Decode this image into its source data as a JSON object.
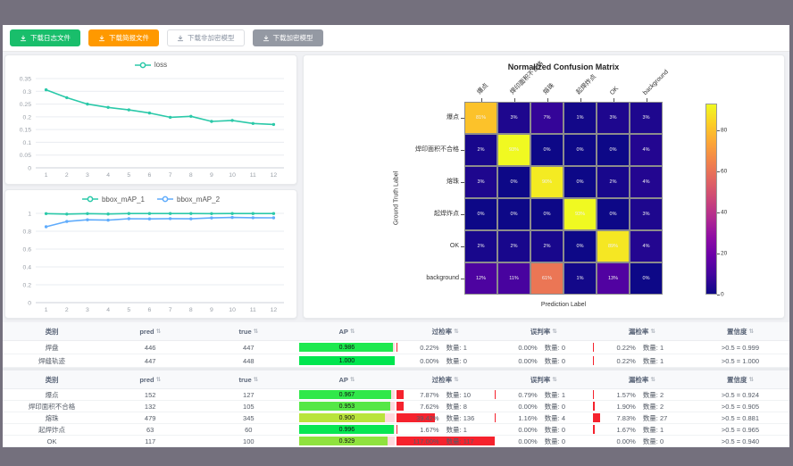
{
  "toolbar": {
    "buttons": [
      {
        "name": "download-log-button",
        "label": "下载日志文件",
        "bg": "#19be6b",
        "fg": "#ffffff",
        "border": "#19be6b"
      },
      {
        "name": "download-report-button",
        "label": "下载简报文件",
        "bg": "#ff9900",
        "fg": "#ffffff",
        "border": "#ff9900"
      },
      {
        "name": "download-unencrypted-model-button",
        "label": "下载非加密模型",
        "bg": "#ffffff",
        "fg": "#8a93a2",
        "border": "#dcdee2"
      },
      {
        "name": "download-encrypted-model-button",
        "label": "下载加密模型",
        "bg": "#9499a3",
        "fg": "#ffffff",
        "border": "#9499a3"
      }
    ]
  },
  "chart_data": [
    {
      "type": "line",
      "title": "",
      "x": [
        1,
        2,
        3,
        4,
        5,
        6,
        7,
        8,
        9,
        10,
        11,
        12
      ],
      "series": [
        {
          "name": "loss",
          "color": "#2bc9a9",
          "values": [
            0.306,
            0.275,
            0.25,
            0.237,
            0.227,
            0.215,
            0.198,
            0.202,
            0.182,
            0.186,
            0.174,
            0.17
          ]
        }
      ],
      "ylim": [
        0,
        0.35
      ],
      "yticks": [
        0,
        0.05,
        0.1,
        0.15,
        0.2,
        0.25,
        0.3,
        0.35
      ],
      "grid": true,
      "legend_position": "top"
    },
    {
      "type": "line",
      "title": "",
      "x": [
        1,
        2,
        3,
        4,
        5,
        6,
        7,
        8,
        9,
        10,
        11,
        12
      ],
      "series": [
        {
          "name": "bbox_mAP_1",
          "color": "#2bc9a9",
          "values": [
            0.997,
            0.992,
            0.997,
            0.993,
            0.998,
            0.998,
            0.998,
            0.998,
            0.997,
            0.998,
            0.998,
            0.998
          ]
        },
        {
          "name": "bbox_mAP_2",
          "color": "#60acfc",
          "values": [
            0.85,
            0.909,
            0.928,
            0.924,
            0.94,
            0.938,
            0.941,
            0.939,
            0.949,
            0.954,
            0.951,
            0.95
          ]
        }
      ],
      "ylim": [
        0,
        1
      ],
      "yticks": [
        0,
        0.2,
        0.4,
        0.6,
        0.8,
        1
      ],
      "grid": true,
      "legend_position": "top"
    },
    {
      "type": "heatmap",
      "title": "Normalized Confusion Matrix",
      "xlabel": "Prediction Label",
      "ylabel": "Ground Truth Label",
      "labels": [
        "爆点",
        "焊印面积不合格",
        "熔珠",
        "起焊炸点",
        "OK",
        "background"
      ],
      "values_pct": [
        [
          81,
          3,
          7,
          1,
          3,
          3
        ],
        [
          2,
          93,
          0,
          0,
          0,
          4
        ],
        [
          3,
          0,
          90,
          0,
          2,
          4
        ],
        [
          0,
          0,
          0,
          93,
          0,
          3
        ],
        [
          2,
          2,
          2,
          0,
          89,
          4
        ],
        [
          12,
          11,
          61,
          1,
          13,
          0
        ]
      ],
      "vmax": 93,
      "colorbar_ticks": [
        0,
        20,
        40,
        60,
        80
      ],
      "colormap": "plasma",
      "legend_position": "right-colorbar"
    }
  ],
  "tables": [
    {
      "name": "pad-seam-metrics-table",
      "headers": [
        {
          "label": "类别",
          "sortable": false
        },
        {
          "label": "pred",
          "sortable": true
        },
        {
          "label": "true",
          "sortable": true
        },
        {
          "label": "AP",
          "sortable": true
        },
        {
          "label": "过检率",
          "sortable": true
        },
        {
          "label": "误判率",
          "sortable": true
        },
        {
          "label": "漏检率",
          "sortable": true
        },
        {
          "label": "置信度",
          "sortable": true
        }
      ],
      "rows": [
        {
          "class": "焊盘",
          "pred": "446",
          "true": "447",
          "ap": "0.986",
          "ap_value": 0.986,
          "ap_color": "#1de94e",
          "over": {
            "pct": "0.22%",
            "count": "数量: 1",
            "bar": 0.22
          },
          "mis": {
            "pct": "0.00%",
            "count": "数量: 0",
            "bar": 0
          },
          "miss": {
            "pct": "0.22%",
            "count": "数量: 1",
            "bar": 0.22
          },
          "conf": ">0.5 = 0.999"
        },
        {
          "class": "焊缝轨迹",
          "pred": "447",
          "true": "448",
          "ap": "1.000",
          "ap_value": 1.0,
          "ap_color": "#00e64f",
          "over": {
            "pct": "0.00%",
            "count": "数量: 0",
            "bar": 0
          },
          "mis": {
            "pct": "0.00%",
            "count": "数量: 0",
            "bar": 0
          },
          "miss": {
            "pct": "0.22%",
            "count": "数量: 1",
            "bar": 0.22
          },
          "conf": ">0.5 = 1.000"
        }
      ]
    },
    {
      "name": "defect-metrics-table",
      "headers": [
        {
          "label": "类别",
          "sortable": false
        },
        {
          "label": "pred",
          "sortable": true
        },
        {
          "label": "true",
          "sortable": true
        },
        {
          "label": "AP",
          "sortable": true
        },
        {
          "label": "过检率",
          "sortable": true
        },
        {
          "label": "误判率",
          "sortable": true
        },
        {
          "label": "漏检率",
          "sortable": true
        },
        {
          "label": "置信度",
          "sortable": true
        }
      ],
      "rows": [
        {
          "class": "爆点",
          "pred": "152",
          "true": "127",
          "ap": "0.967",
          "ap_value": 0.967,
          "ap_color": "#30e84a",
          "over": {
            "pct": "7.87%",
            "count": "数量: 10",
            "bar": 7.87
          },
          "mis": {
            "pct": "0.79%",
            "count": "数量: 1",
            "bar": 0.79
          },
          "miss": {
            "pct": "1.57%",
            "count": "数量: 2",
            "bar": 1.57
          },
          "conf": ">0.5 = 0.924"
        },
        {
          "class": "焊印面积不合格",
          "pred": "132",
          "true": "105",
          "ap": "0.953",
          "ap_value": 0.953,
          "ap_color": "#55e746",
          "over": {
            "pct": "7.62%",
            "count": "数量: 8",
            "bar": 7.62
          },
          "mis": {
            "pct": "0.00%",
            "count": "数量: 0",
            "bar": 0
          },
          "miss": {
            "pct": "1.90%",
            "count": "数量: 2",
            "bar": 1.9
          },
          "conf": ">0.5 = 0.905"
        },
        {
          "class": "熔珠",
          "pred": "479",
          "true": "345",
          "ap": "0.900",
          "ap_value": 0.9,
          "ap_color": "#b9e43b",
          "over": {
            "pct": "39.42%",
            "count": "数量: 136",
            "bar": 39.42
          },
          "mis": {
            "pct": "1.16%",
            "count": "数量: 4",
            "bar": 1.16
          },
          "miss": {
            "pct": "7.83%",
            "count": "数量: 27",
            "bar": 7.83
          },
          "conf": ">0.5 = 0.881"
        },
        {
          "class": "起焊炸点",
          "pred": "63",
          "true": "60",
          "ap": "0.996",
          "ap_value": 0.996,
          "ap_color": "#08e653",
          "over": {
            "pct": "1.67%",
            "count": "数量: 1",
            "bar": 1.67
          },
          "mis": {
            "pct": "0.00%",
            "count": "数量: 0",
            "bar": 0
          },
          "miss": {
            "pct": "1.67%",
            "count": "数量: 1",
            "bar": 1.67
          },
          "conf": ">0.5 = 0.965"
        },
        {
          "class": "OK",
          "pred": "117",
          "true": "100",
          "ap": "0.929",
          "ap_value": 0.929,
          "ap_color": "#8fe23e",
          "over": {
            "pct": "117.00%",
            "count": "数量: 117",
            "bar": 100
          },
          "mis": {
            "pct": "0.00%",
            "count": "数量: 0",
            "bar": 0
          },
          "miss": {
            "pct": "0.00%",
            "count": "数量: 0",
            "bar": 0
          },
          "conf": ">0.5 = 0.940"
        }
      ]
    }
  ],
  "colors": {
    "rate_bar": "#f5222d",
    "ap_rest": "#ffd9de",
    "frame": "#74707d"
  }
}
